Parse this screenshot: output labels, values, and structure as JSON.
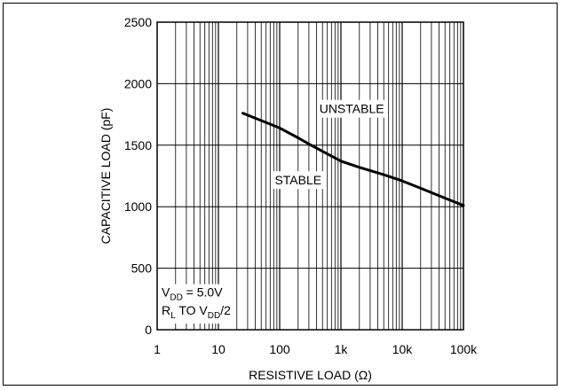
{
  "chart_data": {
    "type": "line",
    "title": "",
    "xlabel": "RESISTIVE LOAD (Ω)",
    "ylabel": "CAPACITIVE LOAD (pF)",
    "x_scale": "log",
    "xlim": [
      1,
      100000
    ],
    "ylim": [
      0,
      2500
    ],
    "x_ticks": [
      1,
      10,
      100,
      1000,
      10000,
      100000
    ],
    "x_tick_labels": [
      "1",
      "10",
      "100",
      "1k",
      "10k",
      "100k"
    ],
    "y_ticks": [
      0,
      500,
      1000,
      1500,
      2000,
      2500
    ],
    "y_tick_labels": [
      "0",
      "500",
      "1000",
      "1500",
      "2000",
      "2500"
    ],
    "grid": true,
    "series": [
      {
        "x": [
          25,
          50,
          100,
          200,
          300,
          500,
          1000,
          2000,
          5000,
          10000,
          20000,
          50000,
          100000
        ],
        "y": [
          1760,
          1700,
          1640,
          1560,
          1510,
          1450,
          1370,
          1320,
          1260,
          1210,
          1150,
          1070,
          1010
        ]
      }
    ],
    "annotations": [
      {
        "text": "UNSTABLE",
        "x": 1500,
        "y": 1760
      },
      {
        "text": "STABLE",
        "x": 200,
        "y": 1180
      }
    ],
    "conditions": [
      {
        "main": "V",
        "sub": "DD",
        "rest": " = 5.0V"
      },
      {
        "main": "R",
        "sub": "L",
        "mid": " TO V",
        "sub2": "DD",
        "rest": "/2"
      }
    ]
  }
}
